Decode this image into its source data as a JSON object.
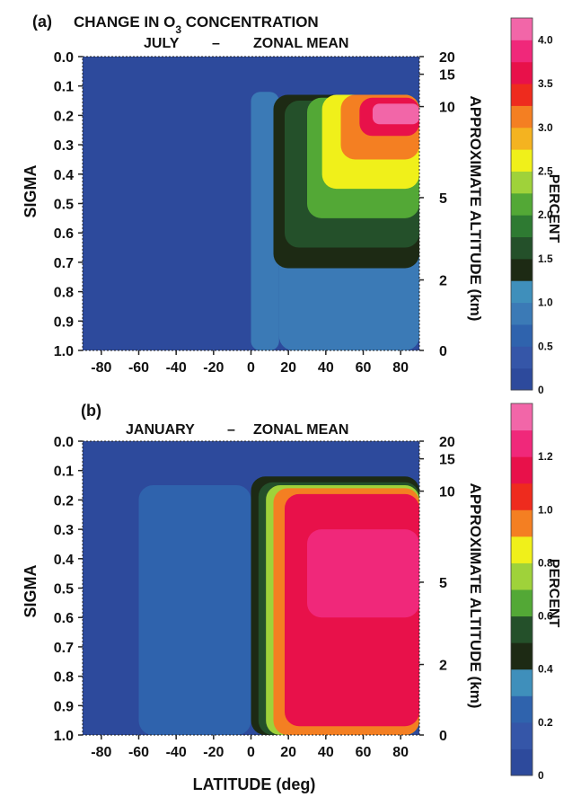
{
  "chart_data": [
    {
      "type": "heatmap",
      "panel_label": "(a)",
      "title": "CHANGE IN O3 CONCENTRATION",
      "title_parts": {
        "before": "CHANGE IN O",
        "sub": "3",
        "after": " CONCENTRATION"
      },
      "subtitle_left": "JULY",
      "subtitle_dash": "–",
      "subtitle_right": "ZONAL MEAN",
      "xlabel": "",
      "ylabel": "SIGMA",
      "y2label": "APPROXIMATE ALTITUDE (km)",
      "colorbar_label": "PERCENT",
      "xlim": [
        -90,
        90
      ],
      "ylim": [
        0.0,
        1.0
      ],
      "x_ticks": [
        -80,
        -60,
        -40,
        -20,
        0,
        20,
        40,
        60,
        80
      ],
      "y_ticks": [
        "0.0",
        "0.1",
        "0.2",
        "0.3",
        "0.4",
        "0.5",
        "0.6",
        "0.7",
        "0.8",
        "0.9",
        "1.0"
      ],
      "altitude_ticks": [
        {
          "sigma": 0.0,
          "label": "20"
        },
        {
          "sigma": 0.06,
          "label": "15"
        },
        {
          "sigma": 0.17,
          "label": "10"
        },
        {
          "sigma": 0.48,
          "label": "5"
        },
        {
          "sigma": 0.76,
          "label": "2"
        },
        {
          "sigma": 1.0,
          "label": "0"
        }
      ],
      "colorbar_ticks": [
        "0",
        "0.5",
        "1.0",
        "1.5",
        "2.0",
        "2.5",
        "3.0",
        "3.5",
        "4.0"
      ],
      "levels": [
        0,
        0.25,
        0.5,
        0.75,
        1.0,
        1.25,
        1.5,
        1.75,
        2.0,
        2.25,
        2.5,
        2.75,
        3.0,
        3.25,
        3.5,
        3.75,
        4.0
      ],
      "colors": [
        "#2d4a9c",
        "#3556a8",
        "#2f63ad",
        "#3b7ab6",
        "#3f8fbb",
        "#1d2a14",
        "#24502a",
        "#2e7a32",
        "#53a836",
        "#9fd23a",
        "#f0f01a",
        "#f4b320",
        "#f47f22",
        "#ee2b1e",
        "#e8114a",
        "#f0287a",
        "#f266a8"
      ],
      "features": [
        {
          "x": [
            0,
            15
          ],
          "sigma": [
            0.12,
            1.0
          ],
          "value": 0.75
        },
        {
          "x": [
            15,
            90
          ],
          "sigma": [
            0.55,
            1.0
          ],
          "value": 0.75
        },
        {
          "x": [
            12,
            90
          ],
          "sigma": [
            0.13,
            0.72
          ],
          "value": 1.3
        },
        {
          "x": [
            18,
            90
          ],
          "sigma": [
            0.15,
            0.65
          ],
          "value": 1.7
        },
        {
          "x": [
            30,
            90
          ],
          "sigma": [
            0.14,
            0.55
          ],
          "value": 2.1
        },
        {
          "x": [
            38,
            90
          ],
          "sigma": [
            0.13,
            0.45
          ],
          "value": 2.6
        },
        {
          "x": [
            48,
            90
          ],
          "sigma": [
            0.13,
            0.35
          ],
          "value": 3.1
        },
        {
          "x": [
            58,
            90
          ],
          "sigma": [
            0.14,
            0.27
          ],
          "value": 3.6
        },
        {
          "x": [
            65,
            90
          ],
          "sigma": [
            0.16,
            0.23
          ],
          "value": 4.0
        }
      ]
    },
    {
      "type": "heatmap",
      "panel_label": "(b)",
      "title": "",
      "subtitle_left": "JANUARY",
      "subtitle_dash": "–",
      "subtitle_right": "ZONAL MEAN",
      "xlabel": "LATITUDE (deg)",
      "ylabel": "SIGMA",
      "y2label": "APPROXIMATE ALTITUDE (km)",
      "colorbar_label": "PERCENT",
      "xlim": [
        -90,
        90
      ],
      "ylim": [
        0.0,
        1.0
      ],
      "x_ticks": [
        -80,
        -60,
        -40,
        -20,
        0,
        20,
        40,
        60,
        80
      ],
      "y_ticks": [
        "0.0",
        "0.1",
        "0.2",
        "0.3",
        "0.4",
        "0.5",
        "0.6",
        "0.7",
        "0.8",
        "0.9",
        "1.0"
      ],
      "altitude_ticks": [
        {
          "sigma": 0.0,
          "label": "20"
        },
        {
          "sigma": 0.06,
          "label": "15"
        },
        {
          "sigma": 0.17,
          "label": "10"
        },
        {
          "sigma": 0.48,
          "label": "5"
        },
        {
          "sigma": 0.76,
          "label": "2"
        },
        {
          "sigma": 1.0,
          "label": "0"
        }
      ],
      "colorbar_ticks": [
        "0",
        "0.2",
        "0.4",
        "0.6",
        "0.8",
        "1.0",
        "1.2"
      ],
      "levels": [
        0,
        0.1,
        0.2,
        0.3,
        0.4,
        0.5,
        0.6,
        0.7,
        0.8,
        0.9,
        1.0,
        1.1,
        1.2,
        1.3
      ],
      "colors": [
        "#2d4a9c",
        "#3556a8",
        "#2f63ad",
        "#3f8fbb",
        "#1d2a14",
        "#24502a",
        "#53a836",
        "#9fd23a",
        "#f0f01a",
        "#f47f22",
        "#ee2b1e",
        "#e8114a",
        "#f0287a",
        "#f266a8"
      ],
      "features": [
        {
          "x": [
            -60,
            0
          ],
          "sigma": [
            0.15,
            1.0
          ],
          "value": 0.2
        },
        {
          "x": [
            0,
            90
          ],
          "sigma": [
            0.12,
            1.0
          ],
          "value": 0.4
        },
        {
          "x": [
            4,
            90
          ],
          "sigma": [
            0.14,
            1.0
          ],
          "value": 0.55
        },
        {
          "x": [
            8,
            90
          ],
          "sigma": [
            0.15,
            1.0
          ],
          "value": 0.75
        },
        {
          "x": [
            12,
            90
          ],
          "sigma": [
            0.16,
            1.0
          ],
          "value": 0.95
        },
        {
          "x": [
            18,
            90
          ],
          "sigma": [
            0.18,
            0.97
          ],
          "value": 1.15
        },
        {
          "x": [
            30,
            90
          ],
          "sigma": [
            0.3,
            0.6
          ],
          "value": 1.25
        }
      ]
    }
  ]
}
